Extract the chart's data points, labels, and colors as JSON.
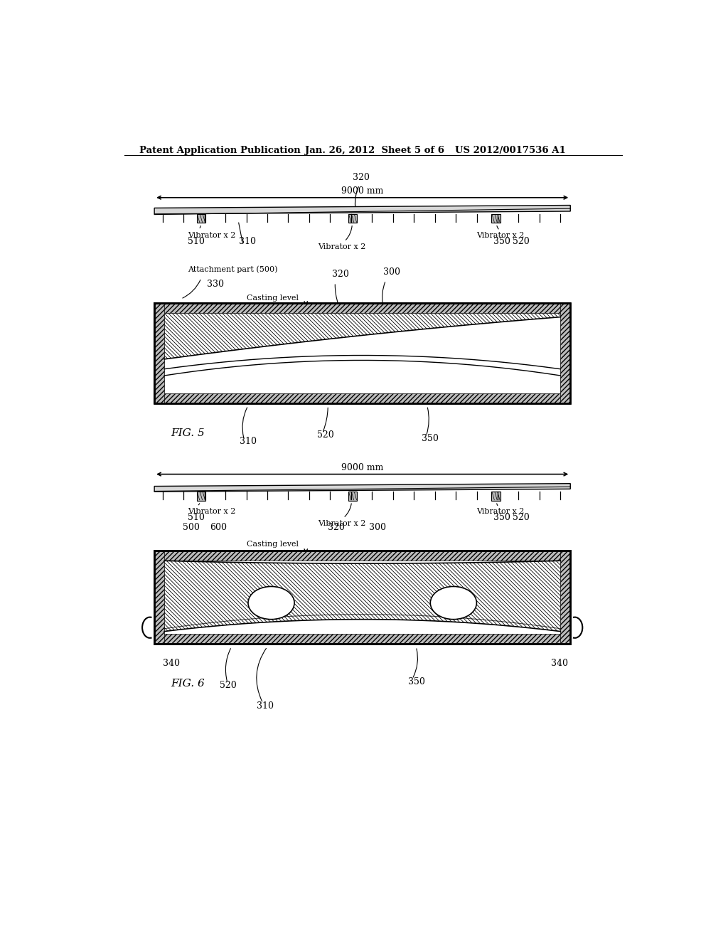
{
  "bg_color": "#ffffff",
  "text_color": "#000000",
  "header_left": "Patent Application Publication",
  "header_mid": "Jan. 26, 2012  Sheet 5 of 6",
  "header_right": "US 2012/0017536 A1",
  "fig5_label": "FIG. 5",
  "fig6_label": "FIG. 6",
  "dim_text": "9000 mm",
  "casting_level_text": "Casting level",
  "attachment_text": "Attachment part (500)",
  "vibrator_text": "Vibrator x 2"
}
